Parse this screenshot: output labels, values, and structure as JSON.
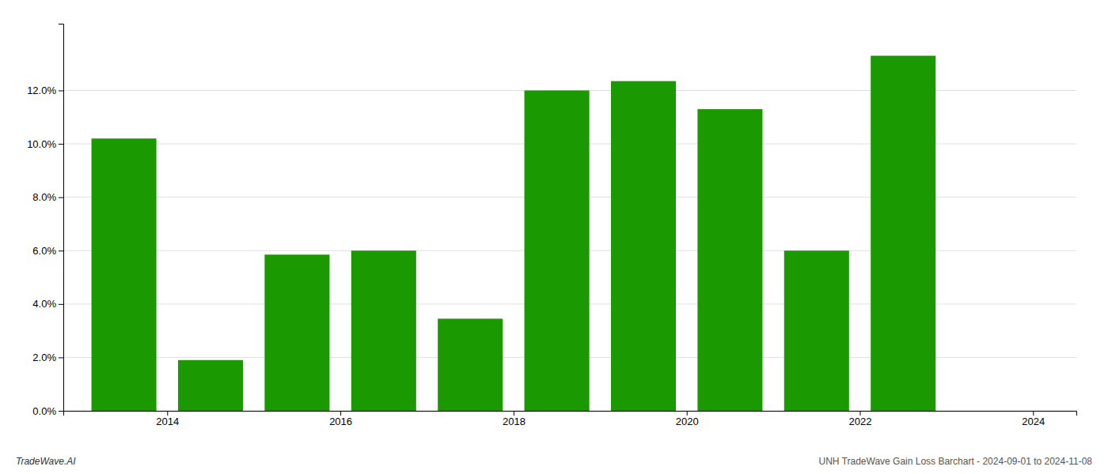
{
  "chart_data": {
    "type": "bar",
    "x": [
      2013.5,
      2014.5,
      2015.5,
      2016.5,
      2017.5,
      2018.5,
      2019.5,
      2020.5,
      2021.5,
      2022.5
    ],
    "values": [
      0.102,
      0.019,
      0.0585,
      0.06,
      0.0345,
      0.12,
      0.1235,
      0.113,
      0.06,
      0.133
    ],
    "color": "#1a9900",
    "xlim": [
      2012.8,
      2024.5
    ],
    "xticks": [
      2014,
      2016,
      2018,
      2020,
      2022,
      2024
    ],
    "ylim": [
      0,
      0.145
    ],
    "yticks": [
      {
        "value": 0.0,
        "label": "0.0%"
      },
      {
        "value": 0.02,
        "label": "2.0%"
      },
      {
        "value": 0.04,
        "label": "4.0%"
      },
      {
        "value": 0.06,
        "label": "6.0%"
      },
      {
        "value": 0.08,
        "label": "8.0%"
      },
      {
        "value": 0.1,
        "label": "10.0%"
      },
      {
        "value": 0.12,
        "label": "12.0%"
      }
    ],
    "grid": true,
    "annotations": [
      "TradeWave.AI",
      "UNH TradeWave Gain Loss Barchart - 2024-09-01 to 2024-11-08"
    ]
  }
}
